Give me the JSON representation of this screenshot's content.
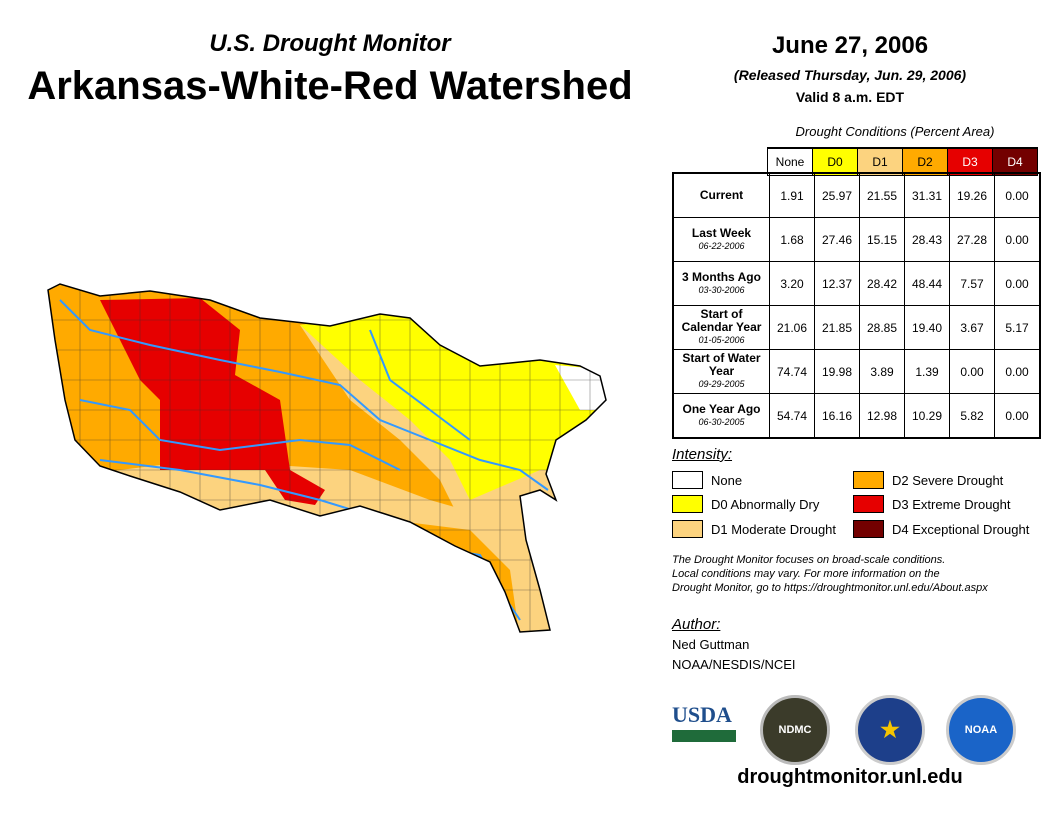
{
  "header": {
    "subtitle": "U.S. Drought Monitor",
    "title": "Arkansas-White-Red Watershed",
    "date": "June 27, 2006",
    "released": "(Released Thursday, Jun. 29, 2006)",
    "valid": "Valid 8 a.m. EDT"
  },
  "table": {
    "caption": "Drought Conditions (Percent Area)",
    "columns": [
      "None",
      "D0",
      "D1",
      "D2",
      "D3",
      "D4"
    ],
    "rows": [
      {
        "label": "Current",
        "date": "",
        "values": [
          "1.91",
          "25.97",
          "21.55",
          "31.31",
          "19.26",
          "0.00"
        ]
      },
      {
        "label": "Last Week",
        "date": "06-22-2006",
        "values": [
          "1.68",
          "27.46",
          "15.15",
          "28.43",
          "27.28",
          "0.00"
        ]
      },
      {
        "label": "3 Months Ago",
        "date": "03-30-2006",
        "values": [
          "3.20",
          "12.37",
          "28.42",
          "48.44",
          "7.57",
          "0.00"
        ]
      },
      {
        "label": "Start of Calendar Year",
        "date": "01-05-2006",
        "values": [
          "21.06",
          "21.85",
          "28.85",
          "19.40",
          "3.67",
          "5.17"
        ]
      },
      {
        "label": "Start of Water Year",
        "date": "09-29-2005",
        "values": [
          "74.74",
          "19.98",
          "3.89",
          "1.39",
          "0.00",
          "0.00"
        ]
      },
      {
        "label": "One Year Ago",
        "date": "06-30-2005",
        "values": [
          "54.74",
          "16.16",
          "12.98",
          "10.29",
          "5.82",
          "0.00"
        ]
      }
    ]
  },
  "legend": {
    "title": "Intensity:",
    "items": [
      {
        "label": "None",
        "color": "#ffffff"
      },
      {
        "label": "D0 Abnormally Dry",
        "color": "#ffff00"
      },
      {
        "label": "D1 Moderate Drought",
        "color": "#fcd37f"
      },
      {
        "label": "D2 Severe Drought",
        "color": "#ffaa00"
      },
      {
        "label": "D3 Extreme Drought",
        "color": "#e60000"
      },
      {
        "label": "D4 Exceptional Drought",
        "color": "#730000"
      }
    ]
  },
  "note": [
    "The Drought Monitor focuses on broad-scale conditions.",
    "Local conditions may vary. For more information on the",
    "Drought Monitor, go to https://droughtmonitor.unl.edu/About.aspx"
  ],
  "author": {
    "title": "Author:",
    "name": "Ned Guttman",
    "org": "NOAA/NESDIS/NCEI"
  },
  "logos": [
    "USDA",
    "NDMC",
    "NOAA"
  ],
  "url": "droughtmonitor.unl.edu"
}
